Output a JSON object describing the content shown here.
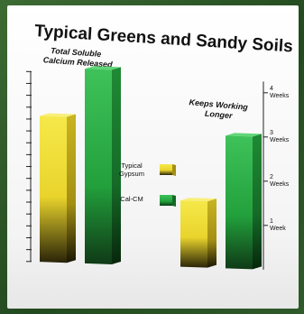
{
  "chart_data": {
    "type": "bar",
    "title": "Typical Greens and Sandy Soils",
    "annotations": [
      {
        "lines": [
          "Total Soluble",
          "Calcium Released"
        ]
      },
      {
        "lines": [
          "Keeps Working",
          "Longer"
        ]
      }
    ],
    "groups": [
      {
        "name": "Total Soluble Calcium Released",
        "values": [
          3.3,
          4.4
        ]
      },
      {
        "name": "Keeps Working Longer",
        "values": [
          1.5,
          3.0
        ]
      }
    ],
    "series": [
      {
        "name": "Typical Gypsum",
        "color": "#f4e23a"
      },
      {
        "name": "Cal-CM",
        "color": "#33b34a"
      }
    ],
    "right_axis": {
      "ticks": [
        {
          "value": 1,
          "lines": [
            "1",
            "Week"
          ]
        },
        {
          "value": 2,
          "lines": [
            "2",
            "Weeks"
          ]
        },
        {
          "value": 3,
          "lines": [
            "3",
            "Weeks"
          ]
        },
        {
          "value": 4,
          "lines": [
            "4",
            "Weeks"
          ]
        }
      ],
      "ylim": [
        0,
        4.5
      ]
    },
    "left_axis": {
      "minor_ticks": 16,
      "labels": false
    },
    "legend_position": "center"
  },
  "colors": {
    "background": "#2f5a2a",
    "yellow": "#f4e23a",
    "green": "#33b34a"
  }
}
